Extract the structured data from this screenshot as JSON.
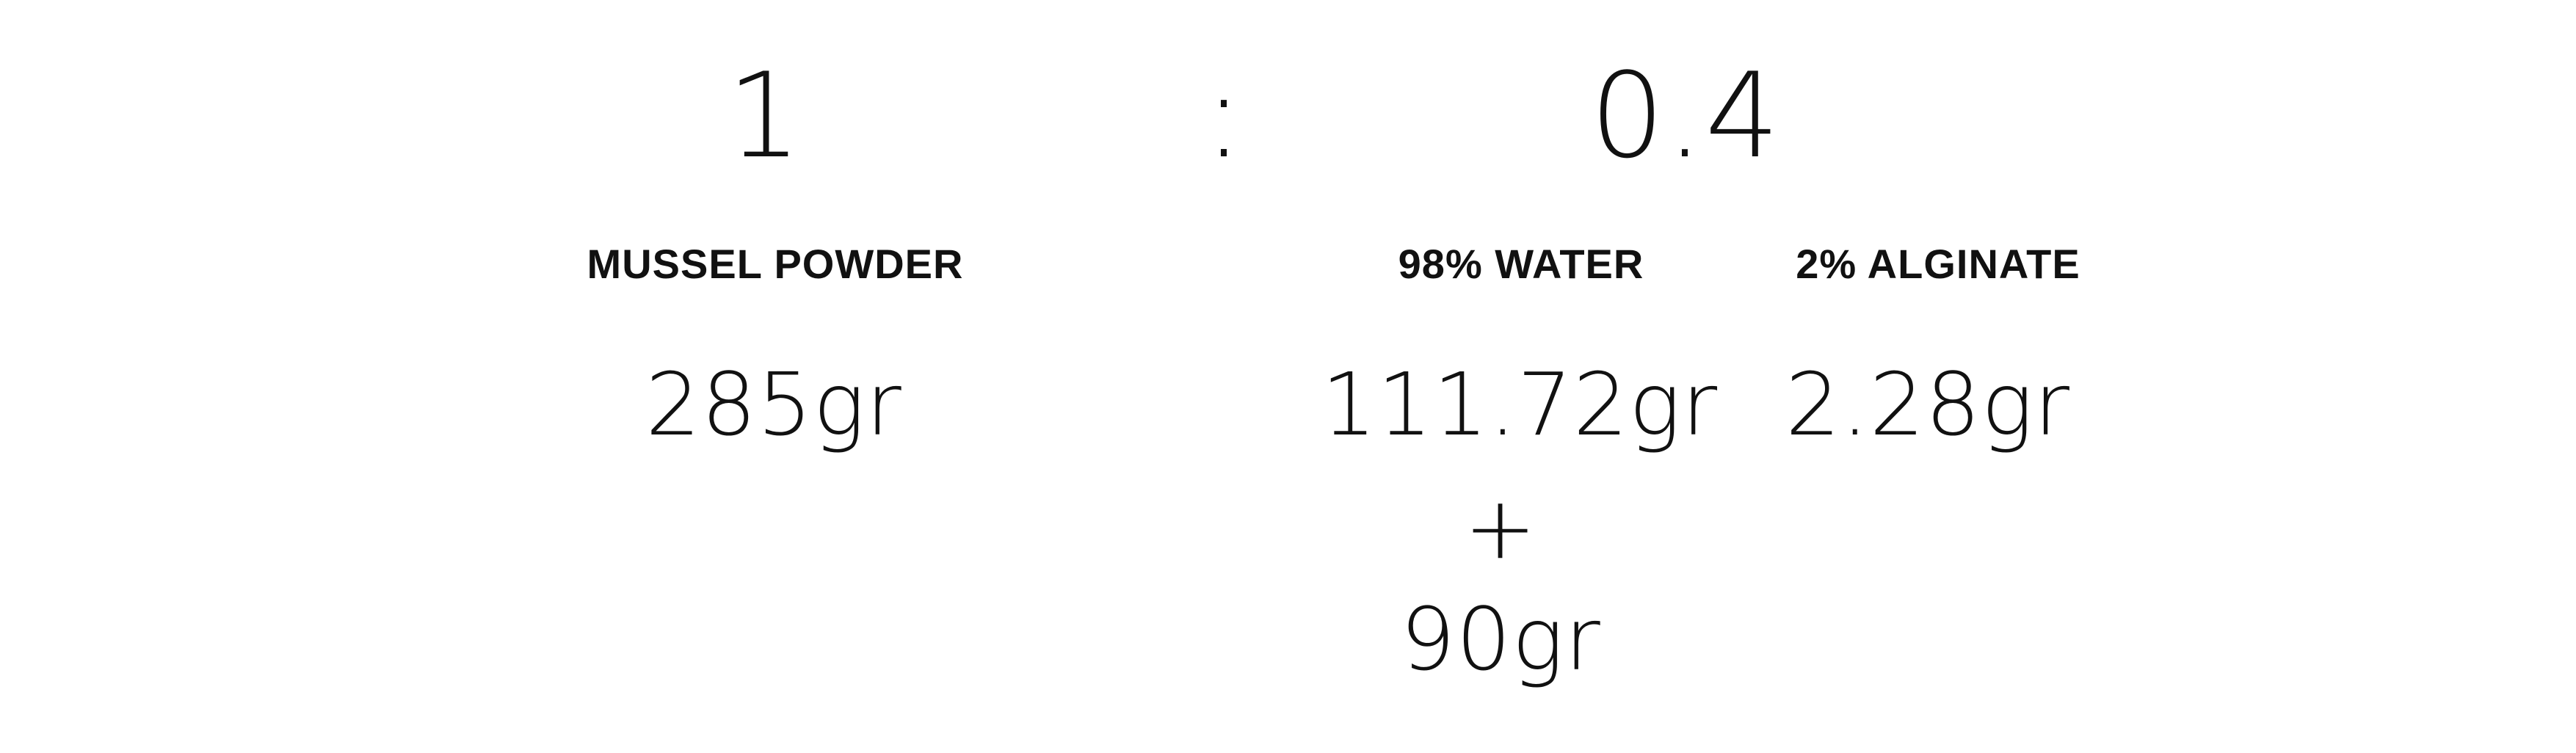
{
  "ratio": {
    "left": "1",
    "separator": ":",
    "right": "0.4"
  },
  "ingredients": {
    "mussel_powder": {
      "label": "MUSSEL POWDER",
      "amount": "285gr"
    },
    "water": {
      "label": "98% WATER",
      "amount": "111.72gr",
      "plus": "+",
      "extra_amount": "90gr"
    },
    "alginate": {
      "label": "2% ALGINATE",
      "amount": "2.28gr"
    }
  }
}
